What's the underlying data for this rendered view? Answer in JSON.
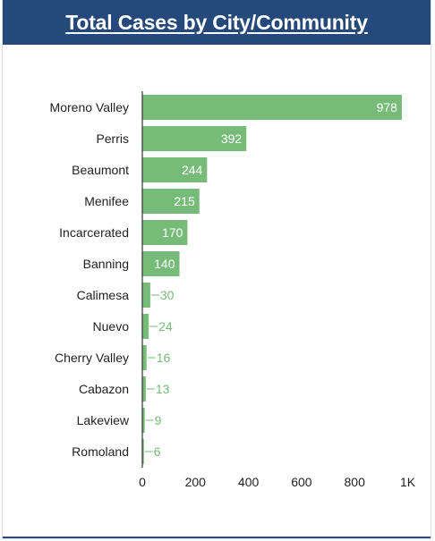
{
  "header": {
    "title": "Total Cases by City/Community"
  },
  "colors": {
    "header_bg": "#24497a",
    "bar": "#77bb79",
    "axis": "#333333"
  },
  "chart_data": {
    "type": "bar",
    "orientation": "horizontal",
    "title": "Total Cases by City/Community",
    "xlabel": "",
    "ylabel": "",
    "categories": [
      "Moreno Valley",
      "Perris",
      "Beaumont",
      "Menifee",
      "Incarcerated",
      "Banning",
      "Calimesa",
      "Nuevo",
      "Cherry Valley",
      "Cabazon",
      "Lakeview",
      "Romoland"
    ],
    "values": [
      978,
      392,
      244,
      215,
      170,
      140,
      30,
      24,
      16,
      13,
      9,
      6
    ],
    "xlim": [
      0,
      1000
    ],
    "ticks": [
      {
        "value": 0,
        "label": "0"
      },
      {
        "value": 200,
        "label": "200"
      },
      {
        "value": 400,
        "label": "400"
      },
      {
        "value": 600,
        "label": "600"
      },
      {
        "value": 800,
        "label": "800"
      },
      {
        "value": 1000,
        "label": "1K"
      }
    ],
    "grid": false,
    "legend": "none"
  }
}
